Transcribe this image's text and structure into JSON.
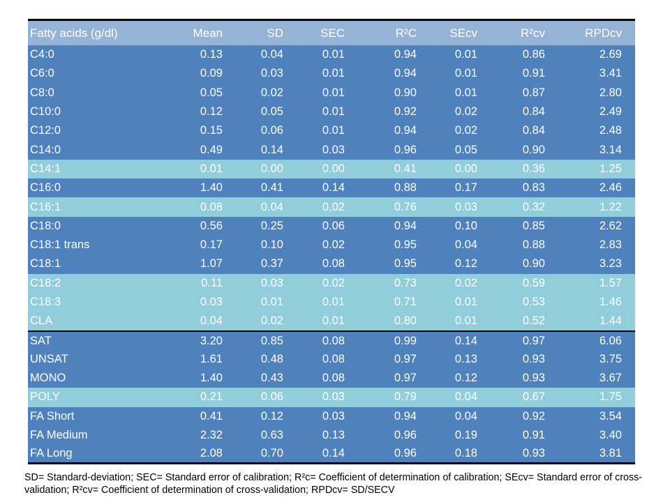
{
  "table": {
    "headers": [
      "Fatty acids (g/dl)",
      "Mean",
      "SD",
      "SEC",
      "R²C",
      "SEcv",
      "R²cv",
      "RPDcv"
    ],
    "rows": [
      {
        "style": "dark",
        "sep": false,
        "cells": [
          "C4:0",
          "0.13",
          "0.04",
          "0.01",
          "0.94",
          "0.01",
          "0.86",
          "2.69"
        ]
      },
      {
        "style": "dark",
        "sep": false,
        "cells": [
          "C6:0",
          "0.09",
          "0.03",
          "0.01",
          "0.94",
          "0.01",
          "0.91",
          "3.41"
        ]
      },
      {
        "style": "dark",
        "sep": false,
        "cells": [
          "C8:0",
          "0.05",
          "0.02",
          "0.01",
          "0.90",
          "0.01",
          "0.87",
          "2.80"
        ]
      },
      {
        "style": "dark",
        "sep": false,
        "cells": [
          "C10:0",
          "0.12",
          "0.05",
          "0.01",
          "0.92",
          "0.02",
          "0.84",
          "2.49"
        ]
      },
      {
        "style": "dark",
        "sep": false,
        "cells": [
          "C12:0",
          "0.15",
          "0.06",
          "0.01",
          "0.94",
          "0.02",
          "0.84",
          "2.48"
        ]
      },
      {
        "style": "dark",
        "sep": false,
        "cells": [
          "C14:0",
          "0.49",
          "0.14",
          "0.03",
          "0.96",
          "0.05",
          "0.90",
          "3.14"
        ]
      },
      {
        "style": "light",
        "sep": false,
        "cells": [
          "C14:1",
          "0.01",
          "0.00",
          "0.00",
          "0.41",
          "0.00",
          "0.36",
          "1.25"
        ]
      },
      {
        "style": "dark",
        "sep": false,
        "cells": [
          "C16:0",
          "1.40",
          "0.41",
          "0.14",
          "0.88",
          "0.17",
          "0.83",
          "2.46"
        ]
      },
      {
        "style": "light",
        "sep": false,
        "cells": [
          "C16:1",
          "0.08",
          "0.04",
          "0,02",
          "0.76",
          "0.03",
          "0.32",
          "1.22"
        ]
      },
      {
        "style": "dark",
        "sep": false,
        "cells": [
          "C18:0",
          "0.56",
          "0.25",
          "0.06",
          "0.94",
          "0.10",
          "0.85",
          "2.62"
        ]
      },
      {
        "style": "dark",
        "sep": false,
        "cells": [
          "C18:1 trans",
          "0.17",
          "0.10",
          "0.02",
          "0.95",
          "0.04",
          "0.88",
          "2.83"
        ]
      },
      {
        "style": "dark",
        "sep": false,
        "cells": [
          "C18:1",
          "1.07",
          "0.37",
          "0.08",
          "0.95",
          "0.12",
          "0.90",
          "3.23"
        ]
      },
      {
        "style": "light",
        "sep": false,
        "cells": [
          "C18:2",
          "0.11",
          "0.03",
          "0.02",
          "0.73",
          "0.02",
          "0.59",
          "1.57"
        ]
      },
      {
        "style": "light",
        "sep": false,
        "cells": [
          "C18:3",
          "0.03",
          "0.01",
          "0.01",
          "0.71",
          "0.01",
          "0.53",
          "1.46"
        ]
      },
      {
        "style": "light",
        "sep": false,
        "cells": [
          "CLA",
          "0.04",
          "0.02",
          "0.01",
          "0.80",
          "0.01",
          "0.52",
          "1.44"
        ]
      },
      {
        "style": "dark",
        "sep": true,
        "cells": [
          "SAT",
          "3.20",
          "0.85",
          "0.08",
          "0.99",
          "0.14",
          "0.97",
          "6.06"
        ]
      },
      {
        "style": "dark",
        "sep": false,
        "cells": [
          "UNSAT",
          "1.61",
          "0.48",
          "0.08",
          "0.97",
          "0.13",
          "0.93",
          "3.75"
        ]
      },
      {
        "style": "dark",
        "sep": false,
        "cells": [
          "MONO",
          "1.40",
          "0.43",
          "0.08",
          "0.97",
          "0.12",
          "0.93",
          "3.67"
        ]
      },
      {
        "style": "light",
        "sep": false,
        "cells": [
          "POLY",
          "0.21",
          "0.06",
          "0.03",
          "0.79",
          "0.04",
          "0.67",
          "1.75"
        ]
      },
      {
        "style": "dark",
        "sep": false,
        "cells": [
          "FA Short",
          "0.41",
          "0.12",
          "0.03",
          "0.94",
          "0.04",
          "0.92",
          "3.54"
        ]
      },
      {
        "style": "dark",
        "sep": false,
        "cells": [
          "FA Medium",
          "2.32",
          "0.63",
          "0.13",
          "0.96",
          "0.19",
          "0.91",
          "3.40"
        ]
      },
      {
        "style": "dark",
        "sep": false,
        "cells": [
          "FA Long",
          "2.08",
          "0.70",
          "0.14",
          "0.96",
          "0.18",
          "0.93",
          "3.81"
        ]
      }
    ]
  },
  "footnote": "SD= Standard-deviation; SEC= Standard error of calibration; R²c= Coefficient of determination of calibration; SEcv= Standard error of cross-validation; R²cv= Coefficient of determination of cross-validation; RPDcv= SD/SECV",
  "colors": {
    "header_bg": "#95b3d7",
    "dark_row_bg": "#4f81bd",
    "light_row_bg": "#92cddc",
    "text": "#ffffff"
  }
}
